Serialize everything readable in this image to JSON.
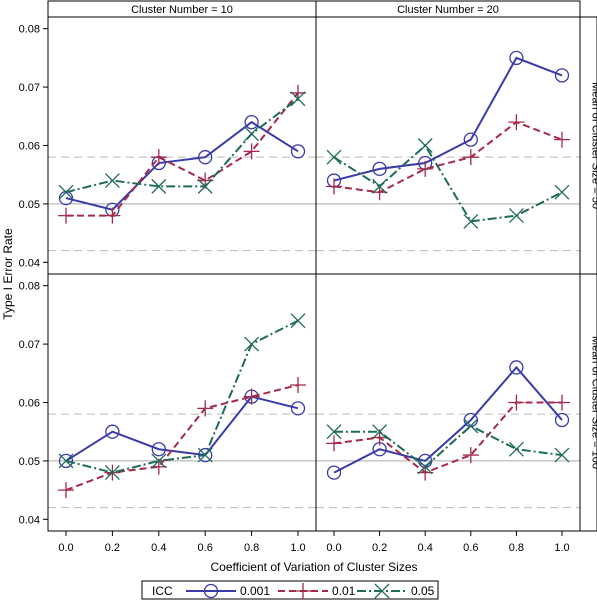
{
  "chart_data": {
    "type": "line",
    "ylabel": "Type I Error Rate",
    "xlabel": "Coefficient of Variation of Cluster Sizes",
    "x": [
      0.0,
      0.2,
      0.4,
      0.6,
      0.8,
      1.0
    ],
    "x_tick_labels": [
      "0.0",
      "0.2",
      "0.4",
      "0.6",
      "0.8",
      "1.0"
    ],
    "ylim": [
      0.038,
      0.082
    ],
    "y_ticks": [
      0.04,
      0.05,
      0.06,
      0.07,
      0.08
    ],
    "y_tick_labels": [
      "0.04",
      "0.05",
      "0.06",
      "0.07",
      "0.08"
    ],
    "reference_lines": {
      "solid": 0.05,
      "dashed": [
        0.042,
        0.058
      ]
    },
    "column_headers": [
      "Cluster Number = 10",
      "Cluster Number = 20"
    ],
    "row_headers": [
      "Mean of Cluster Size = 50",
      "Mean of Cluster Size = 100"
    ],
    "legend": {
      "title": "ICC",
      "placement": "bottom"
    },
    "series_styles": [
      {
        "name": "0.001",
        "color": "#3a3aa8",
        "dash": "solid",
        "marker": "circle"
      },
      {
        "name": "0.01",
        "color": "#a52a4a",
        "dash": "dashed",
        "marker": "plus"
      },
      {
        "name": "0.05",
        "color": "#1e6b5a",
        "dash": "dashdot",
        "marker": "x"
      }
    ],
    "panels": [
      {
        "row": 0,
        "col": 0,
        "series": [
          {
            "name": "0.001",
            "values": [
              0.051,
              0.049,
              0.057,
              0.058,
              0.064,
              0.059
            ]
          },
          {
            "name": "0.01",
            "values": [
              0.048,
              0.048,
              0.058,
              0.054,
              0.059,
              0.069
            ]
          },
          {
            "name": "0.05",
            "values": [
              0.052,
              0.054,
              0.053,
              0.053,
              0.062,
              0.068
            ]
          }
        ]
      },
      {
        "row": 0,
        "col": 1,
        "series": [
          {
            "name": "0.001",
            "values": [
              0.054,
              0.056,
              0.057,
              0.061,
              0.075,
              0.072
            ]
          },
          {
            "name": "0.01",
            "values": [
              0.053,
              0.052,
              0.056,
              0.058,
              0.064,
              0.061
            ]
          },
          {
            "name": "0.05",
            "values": [
              0.058,
              0.053,
              0.06,
              0.047,
              0.048,
              0.052
            ]
          }
        ]
      },
      {
        "row": 1,
        "col": 0,
        "series": [
          {
            "name": "0.001",
            "values": [
              0.05,
              0.055,
              0.052,
              0.051,
              0.061,
              0.059
            ]
          },
          {
            "name": "0.01",
            "values": [
              0.045,
              0.048,
              0.049,
              0.059,
              0.061,
              0.063
            ]
          },
          {
            "name": "0.05",
            "values": [
              0.05,
              0.048,
              0.05,
              0.051,
              0.07,
              0.074
            ]
          }
        ]
      },
      {
        "row": 1,
        "col": 1,
        "series": [
          {
            "name": "0.001",
            "values": [
              0.048,
              0.052,
              0.05,
              0.057,
              0.066,
              0.057
            ]
          },
          {
            "name": "0.01",
            "values": [
              0.053,
              0.054,
              0.048,
              0.051,
              0.06,
              0.06
            ]
          },
          {
            "name": "0.05",
            "values": [
              0.055,
              0.055,
              0.049,
              0.056,
              0.052,
              0.051
            ]
          }
        ]
      }
    ]
  }
}
